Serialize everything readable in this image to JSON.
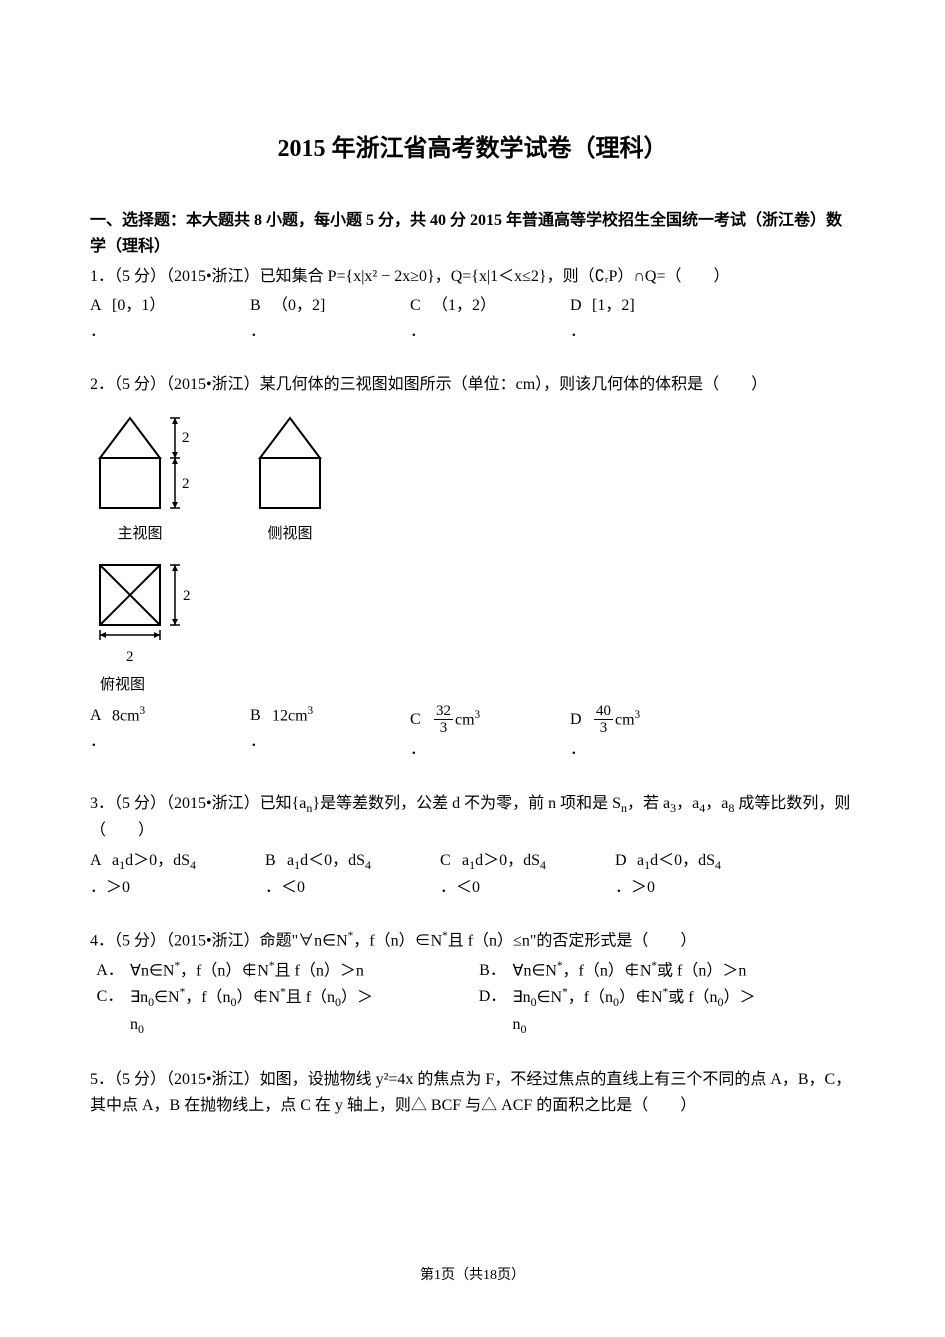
{
  "title": "2015 年浙江省高考数学试卷（理科）",
  "section_header": "一、选择题：本大题共 8 小题，每小题 5 分，共 40 分 2015 年普通高等学校招生全国统一考试（浙江卷）数学（理科）",
  "q1": {
    "stem": "1．（5 分）（2015•浙江）已知集合 P={x|x² − 2x≥0}，Q={x|1＜x≤2}，则（∁ᵣP）∩Q=（　　）",
    "A": "[0，1）",
    "B": "（0，2]",
    "C": "（1，2）",
    "D": "[1，2]"
  },
  "q2": {
    "stem": "2．（5 分）（2015•浙江）某几何体的三视图如图所示（单位：cm），则该几何体的体积是（　　）",
    "labels": {
      "main": "主视图",
      "side": "侧视图",
      "top": "俯视图",
      "dim": "2"
    },
    "A_html": "8cm<sup>3</sup>",
    "B_html": "12cm<sup>3</sup>",
    "C_frac": {
      "num": "32",
      "den": "3",
      "suffix_html": "cm<sup>3</sup>"
    },
    "D_frac": {
      "num": "40",
      "den": "3",
      "suffix_html": "cm<sup>3</sup>"
    },
    "colors": {
      "stroke": "#000000",
      "bg": "#ffffff"
    }
  },
  "q3": {
    "stem_html": "3．（5 分）（2015•浙江）已知{a<sub>n</sub>}是等差数列，公差 d 不为零，前 n 项和是 S<sub>n</sub>，若 a<sub>3</sub>，a<sub>4</sub>，a<sub>8</sub> 成等比数列，则（　　）",
    "A_l1_html": "a<sub>1</sub>d＞0，dS<sub>4</sub>",
    "A_l2": "＞0",
    "B_l1_html": "a<sub>1</sub>d＜0，dS<sub>4</sub>",
    "B_l2": "＜0",
    "C_l1_html": "a<sub>1</sub>d＞0，dS<sub>4</sub>",
    "C_l2": "＜0",
    "D_l1_html": "a<sub>1</sub>d＜0，dS<sub>4</sub>",
    "D_l2": "＞0"
  },
  "q4": {
    "stem_html": "4．（5 分）（2015•浙江）命题\"∀n∈N<sup>*</sup>，f（n）∈N<sup>*</sup>且 f（n）≤n\"的否定形式是（　　）",
    "A_html": "∀n∈N<sup>*</sup>，f（n）∉N<sup>*</sup>且 f（n）＞n",
    "B_html": "∀n∈N<sup>*</sup>，f（n）∉N<sup>*</sup>或 f（n）＞n",
    "C_l1_html": "∃n<sub>0</sub>∈N<sup>*</sup>，f（n<sub>0</sub>）∉N<sup>*</sup>且 f（n<sub>0</sub>）＞",
    "C_l2_html": "n<sub>0</sub>",
    "D_l1_html": "∃n<sub>0</sub>∈N<sup>*</sup>，f（n<sub>0</sub>）∉N<sup>*</sup>或 f（n<sub>0</sub>）＞",
    "D_l2_html": "n<sub>0</sub>"
  },
  "q5": {
    "stem": "5．（5 分）（2015•浙江）如图，设抛物线 y²=4x 的焦点为 F，不经过焦点的直线上有三个不同的点 A，B，C，其中点 A，B 在抛物线上，点 C 在 y 轴上，则△ BCF 与△ ACF 的面积之比是（　　）"
  },
  "footer": "第1页（共18页）"
}
